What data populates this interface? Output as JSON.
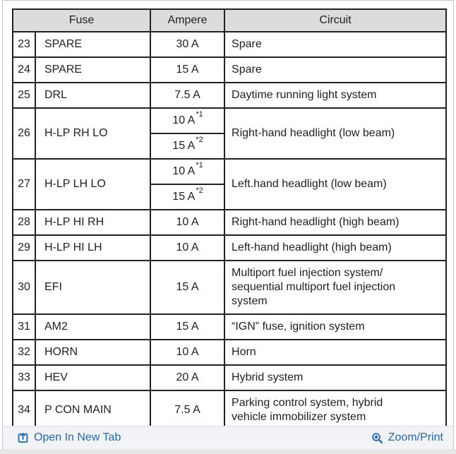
{
  "table": {
    "headers": [
      "Fuse",
      "Ampere",
      "Circuit"
    ],
    "rows": [
      {
        "no": "23",
        "fuse": "SPARE",
        "ampere": [
          {
            "amount": "30 A",
            "note": ""
          }
        ],
        "circuit": "Spare"
      },
      {
        "no": "24",
        "fuse": "SPARE",
        "ampere": [
          {
            "amount": "15 A",
            "note": ""
          }
        ],
        "circuit": "Spare"
      },
      {
        "no": "25",
        "fuse": "DRL",
        "ampere": [
          {
            "amount": "7.5 A",
            "note": ""
          }
        ],
        "circuit": "Daytime running light system"
      },
      {
        "no": "26",
        "fuse": "H-LP RH LO",
        "ampere": [
          {
            "amount": "10 A",
            "note": "*1"
          },
          {
            "amount": "15 A",
            "note": "*2"
          }
        ],
        "circuit": "Right-hand headlight (low beam)"
      },
      {
        "no": "27",
        "fuse": "H-LP LH LO",
        "ampere": [
          {
            "amount": "10 A",
            "note": "*1"
          },
          {
            "amount": "15 A",
            "note": "*2"
          }
        ],
        "circuit": "Left.hand headlight (low beam)"
      },
      {
        "no": "28",
        "fuse": "H-LP HI RH",
        "ampere": [
          {
            "amount": "10 A",
            "note": ""
          }
        ],
        "circuit": "Right-hand headlight (high beam)"
      },
      {
        "no": "29",
        "fuse": "H-LP HI LH",
        "ampere": [
          {
            "amount": "10 A",
            "note": ""
          }
        ],
        "circuit": "Left-hand headlight (high beam)"
      },
      {
        "no": "30",
        "fuse": "EFI",
        "ampere": [
          {
            "amount": "15 A",
            "note": ""
          }
        ],
        "circuit": "Multiport fuel injection system/\nsequential multiport fuel injection\nsystem"
      },
      {
        "no": "31",
        "fuse": "AM2",
        "ampere": [
          {
            "amount": "15 A",
            "note": ""
          }
        ],
        "circuit": "“IGN” fuse, ignition system"
      },
      {
        "no": "32",
        "fuse": "HORN",
        "ampere": [
          {
            "amount": "10 A",
            "note": ""
          }
        ],
        "circuit": "Horn"
      },
      {
        "no": "33",
        "fuse": "HEV",
        "ampere": [
          {
            "amount": "20 A",
            "note": ""
          }
        ],
        "circuit": "Hybrid system"
      },
      {
        "no": "34",
        "fuse": "P CON MAIN",
        "ampere": [
          {
            "amount": "7.5 A",
            "note": ""
          }
        ],
        "circuit": "Parking control system, hybrid\nvehicle immobilizer system"
      }
    ]
  },
  "footer": {
    "open_in_new_tab_label": "Open In New Tab",
    "zoom_print_label": "Zoom/Print",
    "icons": {
      "open_in_new_tab": "open-in-new-tab-icon",
      "zoom_print": "magnifier-plus-icon"
    },
    "link_color": "#1f68b5"
  },
  "colors": {
    "table_border": "#222222",
    "header_background": "#dcdcdc",
    "footer_background": "#f2f3f6",
    "text": "#1f1f1f"
  }
}
